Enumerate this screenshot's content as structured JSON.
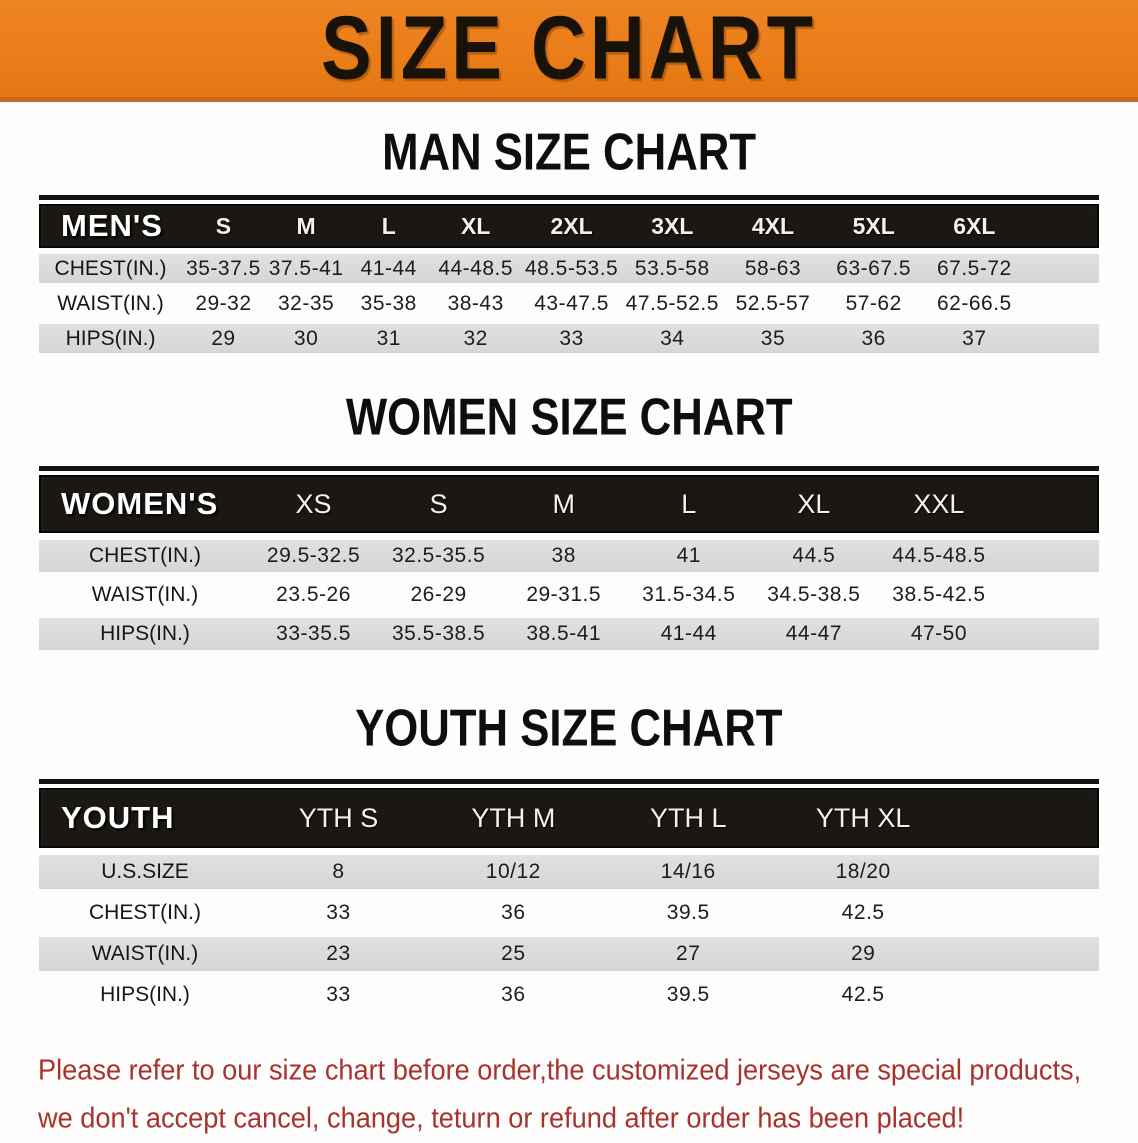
{
  "banner": {
    "title": "SIZE CHART",
    "bg_color": "#e97c17",
    "text_color": "#191209"
  },
  "sections": [
    {
      "title": "MAN SIZE CHART",
      "header_label": "MEN'S",
      "columns": [
        "S",
        "M",
        "L",
        "XL",
        "2XL",
        "3XL",
        "4XL",
        "5XL",
        "6XL"
      ],
      "rows": [
        {
          "label": "CHEST(IN.)",
          "values": [
            "35-37.5",
            "37.5-41",
            "41-44",
            "44-48.5",
            "48.5-53.5",
            "53.5-58",
            "58-63",
            "63-67.5",
            "67.5-72"
          ]
        },
        {
          "label": "WAIST(IN.)",
          "values": [
            "29-32",
            "32-35",
            "35-38",
            "38-43",
            "43-47.5",
            "47.5-52.5",
            "52.5-57",
            "57-62",
            "62-66.5"
          ]
        },
        {
          "label": "HIPS(IN.)",
          "values": [
            "29",
            "30",
            "31",
            "32",
            "33",
            "34",
            "35",
            "36",
            "37"
          ]
        }
      ]
    },
    {
      "title": "WOMEN SIZE CHART",
      "header_label": "WOMEN'S",
      "columns": [
        "XS",
        "S",
        "M",
        "L",
        "XL",
        "XXL"
      ],
      "rows": [
        {
          "label": "CHEST(IN.)",
          "values": [
            "29.5-32.5",
            "32.5-35.5",
            "38",
            "41",
            "44.5",
            "44.5-48.5"
          ]
        },
        {
          "label": "WAIST(IN.)",
          "values": [
            "23.5-26",
            "26-29",
            "29-31.5",
            "31.5-34.5",
            "34.5-38.5",
            "38.5-42.5"
          ]
        },
        {
          "label": "HIPS(IN.)",
          "values": [
            "33-35.5",
            "35.5-38.5",
            "38.5-41",
            "41-44",
            "44-47",
            "47-50"
          ]
        }
      ]
    },
    {
      "title": "YOUTH SIZE CHART",
      "header_label": "YOUTH",
      "columns": [
        "YTH S",
        "YTH M",
        "YTH L",
        "YTH XL"
      ],
      "rows": [
        {
          "label": "U.S.SIZE",
          "values": [
            "8",
            "10/12",
            "14/16",
            "18/20"
          ]
        },
        {
          "label": "CHEST(IN.)",
          "values": [
            "33",
            "36",
            "39.5",
            "42.5"
          ]
        },
        {
          "label": "WAIST(IN.)",
          "values": [
            "23",
            "25",
            "27",
            "29"
          ]
        },
        {
          "label": "HIPS(IN.)",
          "values": [
            "33",
            "36",
            "39.5",
            "42.5"
          ]
        }
      ]
    }
  ],
  "footer": {
    "line1": "Please refer to our size chart before order,the customized jerseys are special products,",
    "line2": "we don't accept cancel, change, teturn or refund after order has been placed!",
    "text_color": "#a9322c"
  }
}
